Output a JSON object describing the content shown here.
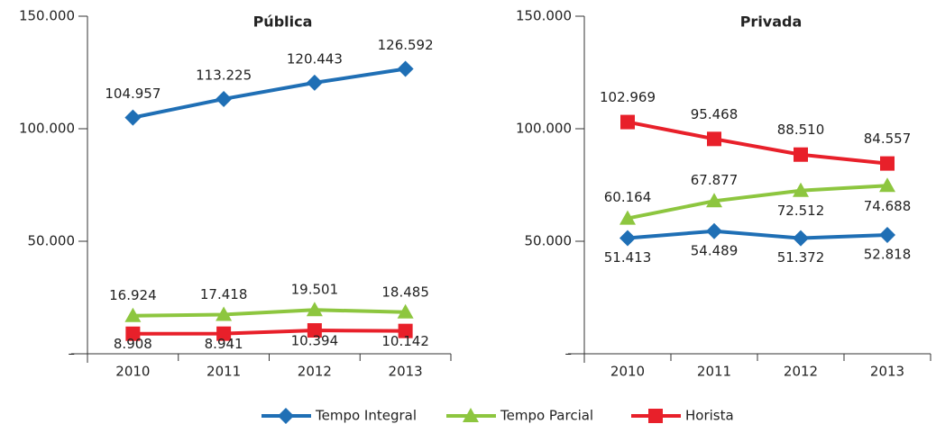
{
  "chart_data": [
    {
      "type": "line",
      "title": "Pública",
      "categories": [
        "2010",
        "2011",
        "2012",
        "2013"
      ],
      "ylim": [
        0,
        150000
      ],
      "yticks": [
        {
          "value": 0,
          "label": "–"
        },
        {
          "value": 50000,
          "label": "50.000"
        },
        {
          "value": 100000,
          "label": "100.000"
        },
        {
          "value": 150000,
          "label": "150.000"
        }
      ],
      "series": [
        {
          "name": "Tempo Integral",
          "color": "#1f6fb5",
          "values": [
            104957,
            113225,
            120443,
            126592
          ],
          "value_labels": [
            "104.957",
            "113.225",
            "120.443",
            "126.592"
          ]
        },
        {
          "name": "Tempo Parcial",
          "color": "#8dc63f",
          "values": [
            16924,
            17418,
            19501,
            18485
          ],
          "value_labels": [
            "16.924",
            "17.418",
            "19.501",
            "18.485"
          ]
        },
        {
          "name": "Horista",
          "color": "#e8202a",
          "values": [
            8908,
            8941,
            10394,
            10142
          ],
          "value_labels": [
            "8.908",
            "8.941",
            "10.394",
            "10.142"
          ]
        }
      ]
    },
    {
      "type": "line",
      "title": "Privada",
      "categories": [
        "2010",
        "2011",
        "2012",
        "2013"
      ],
      "ylim": [
        0,
        150000
      ],
      "yticks": [
        {
          "value": 0,
          "label": "–"
        },
        {
          "value": 50000,
          "label": "50.000"
        },
        {
          "value": 100000,
          "label": "100.000"
        },
        {
          "value": 150000,
          "label": "150.000"
        }
      ],
      "series": [
        {
          "name": "Tempo Integral",
          "color": "#1f6fb5",
          "values": [
            51413,
            54489,
            51372,
            52818
          ],
          "value_labels": [
            "51.413",
            "54.489",
            "51.372",
            "52.818"
          ]
        },
        {
          "name": "Tempo Parcial",
          "color": "#8dc63f",
          "values": [
            60164,
            67877,
            72512,
            74688
          ],
          "value_labels": [
            "60.164",
            "67.877",
            "72.512",
            "74.688"
          ]
        },
        {
          "name": "Horista",
          "color": "#e8202a",
          "values": [
            102969,
            95468,
            88510,
            84557
          ],
          "value_labels": [
            "102.969",
            "95.468",
            "88.510",
            "84.557"
          ]
        }
      ]
    }
  ]
}
